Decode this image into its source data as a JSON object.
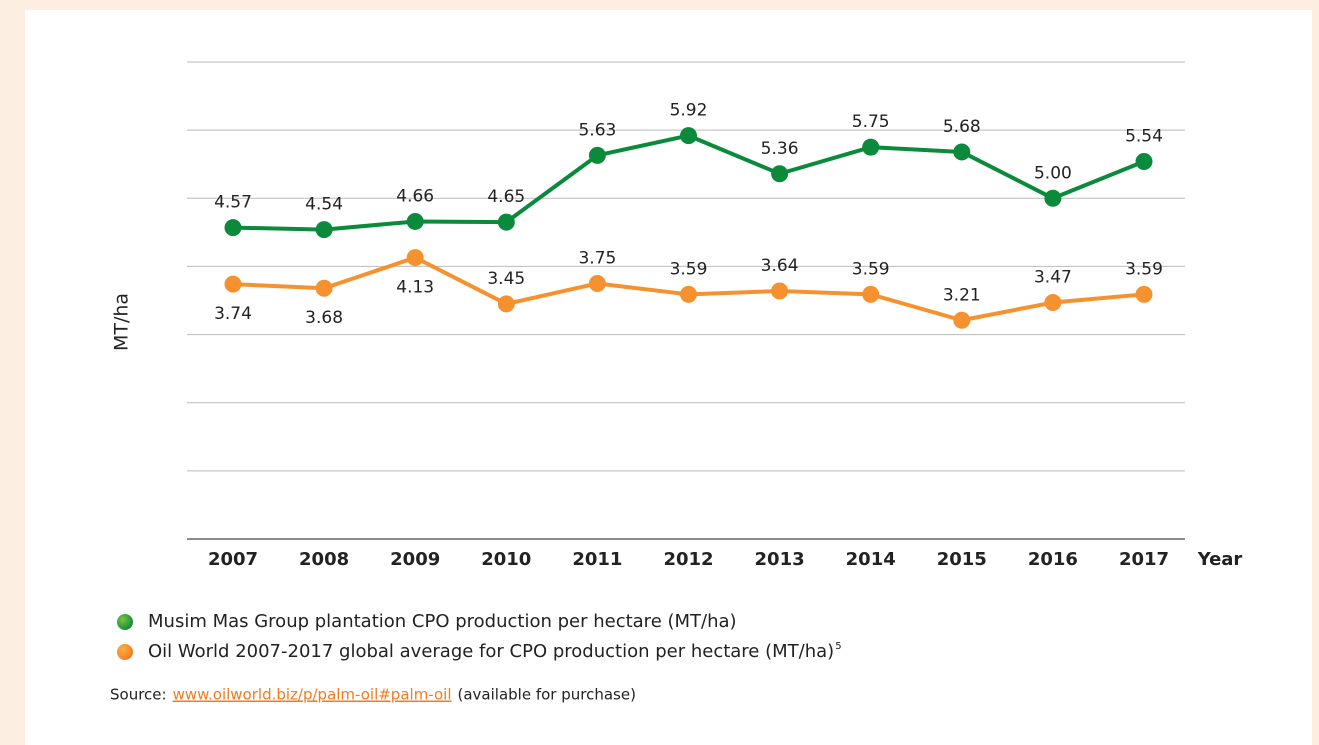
{
  "chart_data": {
    "type": "line",
    "y_label": "MT/ha",
    "x_label": "Year",
    "categories": [
      "2007",
      "2008",
      "2009",
      "2010",
      "2011",
      "2012",
      "2013",
      "2014",
      "2015",
      "2016",
      "2017"
    ],
    "series": [
      {
        "name": "Musim Mas Group plantation CPO production per hectare (MT/ha)",
        "color": "#0b8a3b",
        "values": [
          4.57,
          4.54,
          4.66,
          4.65,
          5.63,
          5.92,
          5.36,
          5.75,
          5.68,
          5.0,
          5.54
        ],
        "value_labels": [
          "4.57",
          "4.54",
          "4.66",
          "4.65",
          "5.63",
          "5.92",
          "5.36",
          "5.75",
          "5.68",
          "5.00",
          "5.54"
        ]
      },
      {
        "name": "Oil World 2007-2017 global average for CPO production per hectare (MT/ha)",
        "footnote": "5",
        "color": "#f5922f",
        "values": [
          3.74,
          3.68,
          4.13,
          3.45,
          3.75,
          3.59,
          3.64,
          3.59,
          3.21,
          3.47,
          3.59
        ],
        "value_labels": [
          "3.74",
          "3.68",
          "4.13",
          "3.45",
          "3.75",
          "3.59",
          "3.64",
          "3.59",
          "3.21",
          "3.47",
          "3.59"
        ]
      }
    ],
    "ylim": [
      0,
      7
    ],
    "yticks": [
      0,
      1,
      2,
      3,
      4,
      5,
      6,
      7
    ],
    "grid": true,
    "source": {
      "prefix": "Source:",
      "link": "www.oilworld.biz/p/palm-oil#palm-oil",
      "suffix": "(available for purchase)"
    }
  }
}
